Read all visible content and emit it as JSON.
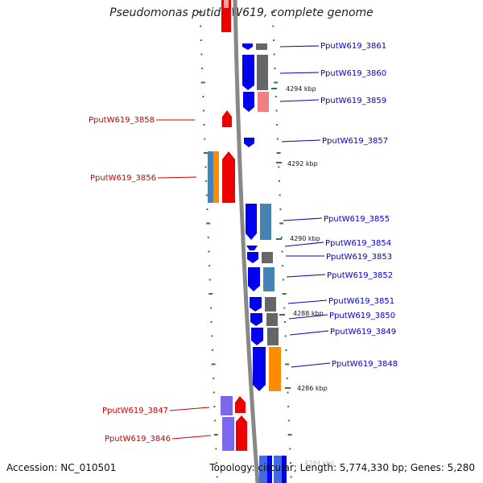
{
  "title": "Pseudomonas putida W619, complete genome",
  "accession": "Accession: NC_010501",
  "topology": "Topology: circular; Length: 5,774,330 bp; Genes: 5,280",
  "colors": {
    "backbone": "#888888",
    "forward_label": "#0000cc",
    "reverse_label": "#cc0000",
    "tick": "#2e7d32",
    "cds_forward": "#0000ee",
    "cds_reverse": "#ee0000"
  },
  "scale_labels": [
    "4294 kbp",
    "4292 kbp",
    "4290 kbp",
    "4288 kbp",
    "4286 kbp",
    "4284 kbp"
  ],
  "genes_forward": [
    "PputW619_3861",
    "PputW619_3860",
    "PputW619_3859",
    "PputW619_3857",
    "PputW619_3855",
    "PputW619_3854",
    "PputW619_3853",
    "PputW619_3852",
    "PputW619_3851",
    "PputW619_3850",
    "PputW619_3849",
    "PputW619_3848"
  ],
  "genes_reverse": [
    "PputW619_3858",
    "PputW619_3856",
    "PputW619_3847",
    "PputW619_3846"
  ]
}
